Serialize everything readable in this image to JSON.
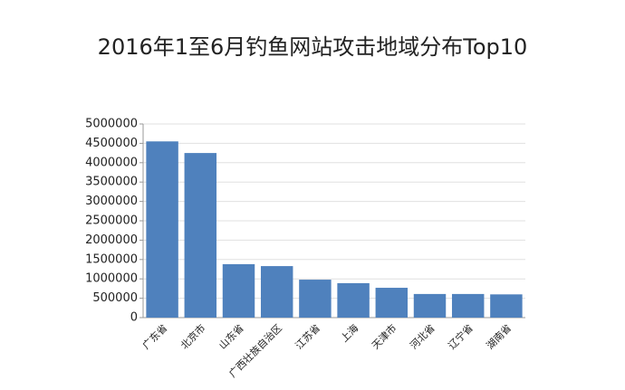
{
  "chart_data": {
    "type": "bar",
    "title": "2016年1至6月钓鱼网站攻击地域分布Top10",
    "categories": [
      "广东省",
      "北京市",
      "山东省",
      "广西壮族自治区",
      "江苏省",
      "上海",
      "天津市",
      "河北省",
      "辽宁省",
      "湖南省"
    ],
    "values": [
      4550000,
      4250000,
      1380000,
      1330000,
      980000,
      890000,
      770000,
      610000,
      610000,
      600000
    ],
    "color": "#4f81bd",
    "ylim": [
      0,
      5000000
    ],
    "yticks": [
      0,
      500000,
      1000000,
      1500000,
      2000000,
      2500000,
      3000000,
      3500000,
      4000000,
      4500000,
      5000000
    ],
    "grid": true
  }
}
